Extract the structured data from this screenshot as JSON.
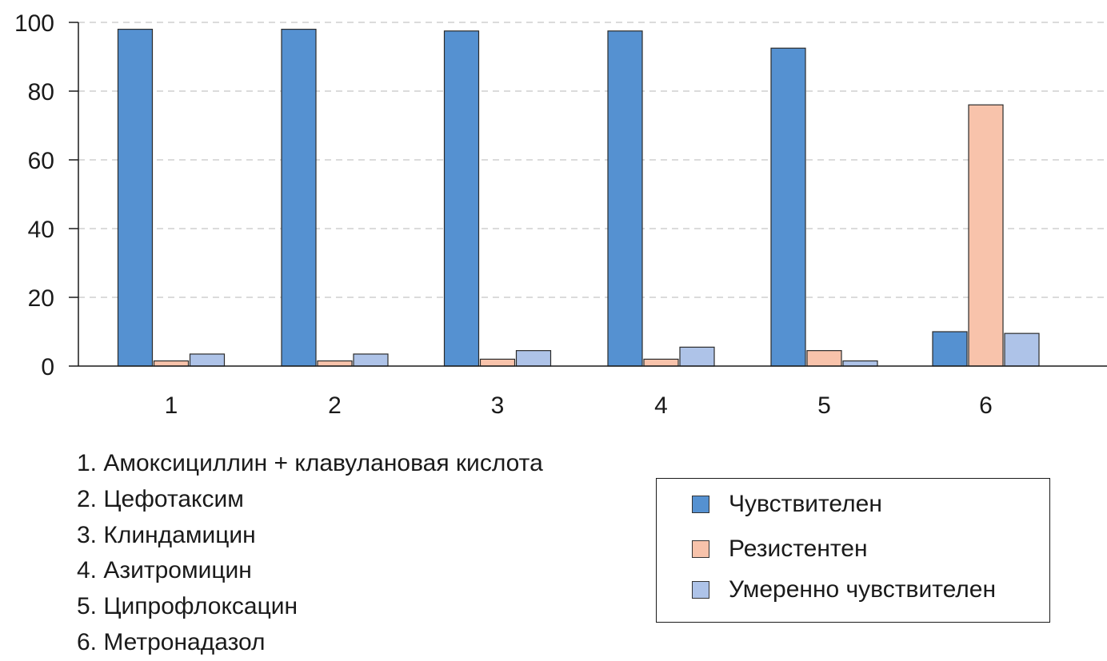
{
  "chart_data": {
    "type": "bar",
    "categories": [
      "1",
      "2",
      "3",
      "4",
      "5",
      "6"
    ],
    "series": [
      {
        "name": "Чувствителен",
        "color": "#5591d1",
        "values": [
          98,
          98,
          97.5,
          97.5,
          92.5,
          10
        ]
      },
      {
        "name": "Резистентен",
        "color": "#f8c3ab",
        "values": [
          1.5,
          1.5,
          2,
          2,
          4.5,
          76
        ]
      },
      {
        "name": "Умеренно чувствителен",
        "color": "#aec3e8",
        "values": [
          3.5,
          3.5,
          4.5,
          5.5,
          1.5,
          9.5
        ]
      }
    ],
    "yticks": [
      "0",
      "20",
      "40",
      "60",
      "80",
      "100"
    ],
    "ylim": [
      0,
      100
    ],
    "grid": true,
    "legend": "bottom-right",
    "title": "",
    "xlabel": "",
    "ylabel": ""
  },
  "notes": [
    "1. Амоксициллин + клавулановая кислота",
    "2. Цефотаксим",
    "3. Клиндамицин",
    "4. Азитромицин",
    "5. Ципрофлоксацин",
    "6. Метронадазол"
  ]
}
